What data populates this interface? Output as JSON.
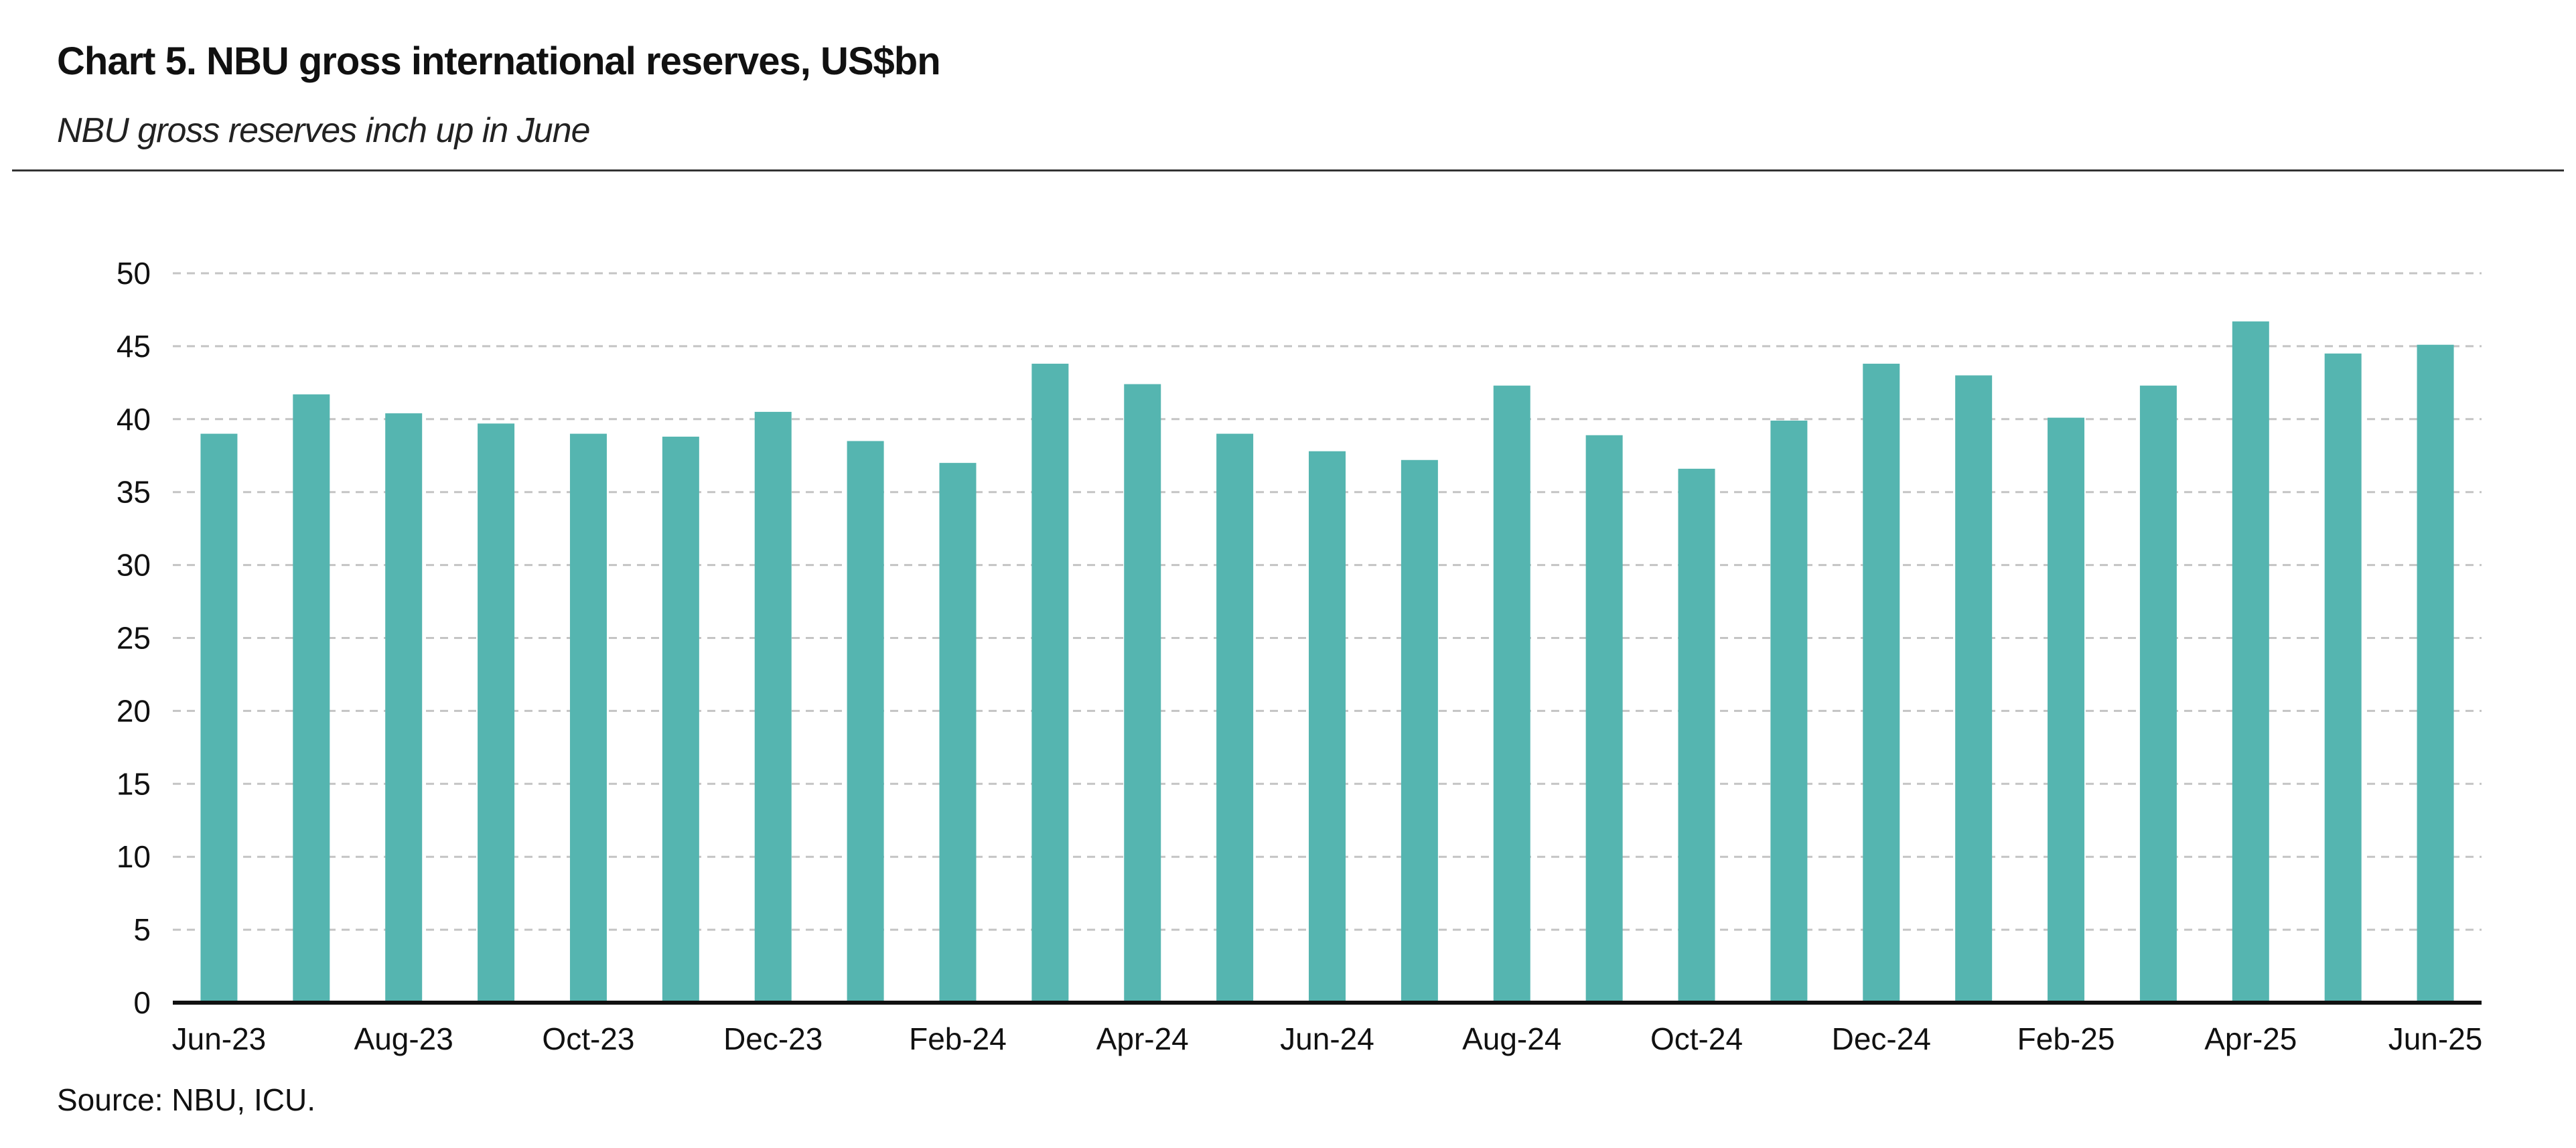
{
  "header": {
    "title": "Chart 5. NBU gross international reserves, US$bn",
    "subtitle": "NBU gross reserves inch up in June"
  },
  "footer": {
    "source": "Source: NBU, ICU."
  },
  "colors": {
    "bar": "#55b5b0",
    "grid": "#c4c4c4",
    "axis": "#111111"
  },
  "chart_data": {
    "type": "bar",
    "categories": [
      "Jun-23",
      "Jul-23",
      "Aug-23",
      "Sep-23",
      "Oct-23",
      "Nov-23",
      "Dec-23",
      "Jan-24",
      "Feb-24",
      "Mar-24",
      "Apr-24",
      "May-24",
      "Jun-24",
      "Jul-24",
      "Aug-24",
      "Sep-24",
      "Oct-24",
      "Nov-24",
      "Dec-24",
      "Jan-25",
      "Feb-25",
      "Mar-25",
      "Apr-25",
      "May-25",
      "Jun-25"
    ],
    "values": [
      39.0,
      41.7,
      40.4,
      39.7,
      39.0,
      38.8,
      40.5,
      38.5,
      37.0,
      43.8,
      42.4,
      39.0,
      37.8,
      37.2,
      42.3,
      38.9,
      36.6,
      39.9,
      43.8,
      43.0,
      40.1,
      42.3,
      46.7,
      44.5,
      45.1
    ],
    "x_tick_labels": [
      "Jun-23",
      "Aug-23",
      "Oct-23",
      "Dec-23",
      "Feb-24",
      "Apr-24",
      "Jun-24",
      "Aug-24",
      "Oct-24",
      "Dec-24",
      "Feb-25",
      "Apr-25",
      "Jun-25"
    ],
    "y_ticks": [
      0,
      5,
      10,
      15,
      20,
      25,
      30,
      35,
      40,
      45,
      50
    ],
    "ylim": [
      0,
      50
    ],
    "grid": true,
    "legend": "none"
  }
}
